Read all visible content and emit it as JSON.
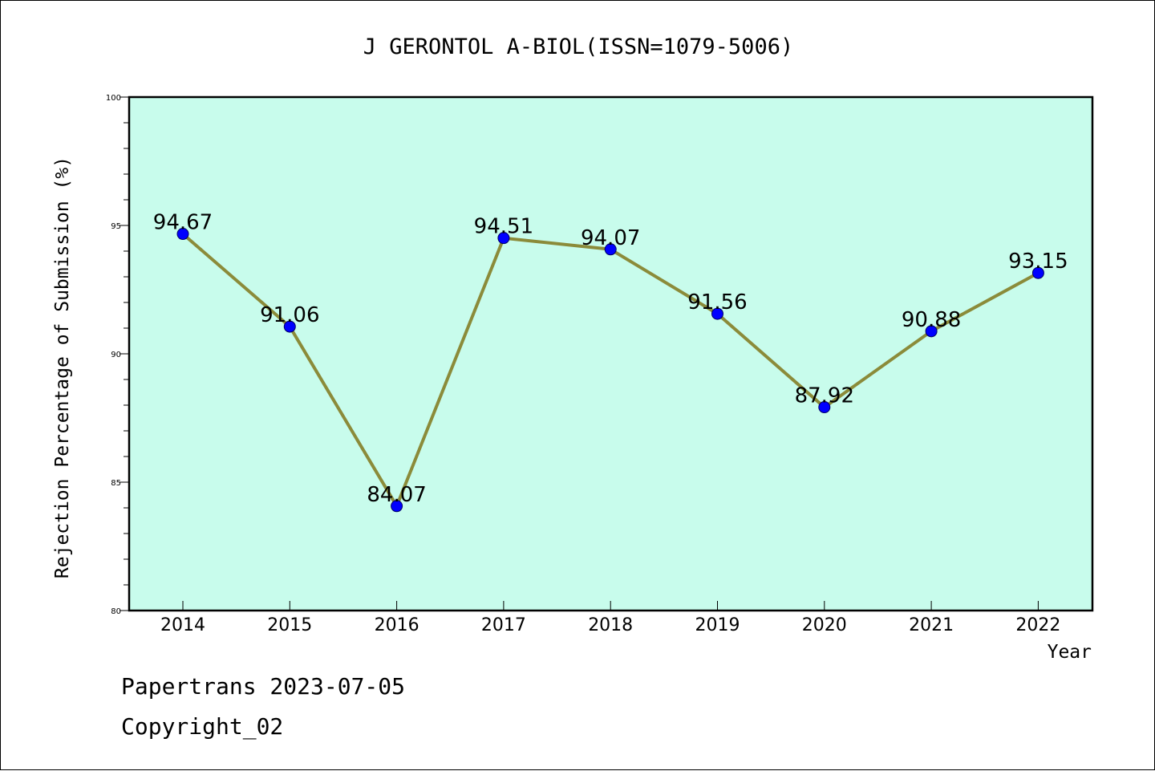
{
  "chart_data": {
    "type": "line",
    "title": "J GERONTOL A-BIOL(ISSN=1079-5006)",
    "xlabel": "Year",
    "ylabel": "Rejection Percentage of Submission (%)",
    "categories": [
      "2014",
      "2015",
      "2016",
      "2017",
      "2018",
      "2019",
      "2020",
      "2021",
      "2022"
    ],
    "series": [
      {
        "values": [
          94.67,
          91.06,
          84.07,
          94.51,
          94.07,
          91.56,
          87.92,
          90.88,
          93.15
        ],
        "data_labels": [
          "94.67",
          "91.06",
          "84.07",
          "94.51",
          "94.07",
          "91.56",
          "87.92",
          "90.88",
          "93.15"
        ]
      }
    ],
    "ylim": [
      80,
      100
    ],
    "yticks": [
      "80",
      "85",
      "90",
      "95",
      "100"
    ],
    "grid": false,
    "colors": {
      "plot_background": "#c8fcec",
      "line": "#8b8b3a",
      "marker": "#0000ff"
    }
  },
  "footer": {
    "line1": "Papertrans 2023-07-05",
    "line2": "Copyright_02"
  }
}
